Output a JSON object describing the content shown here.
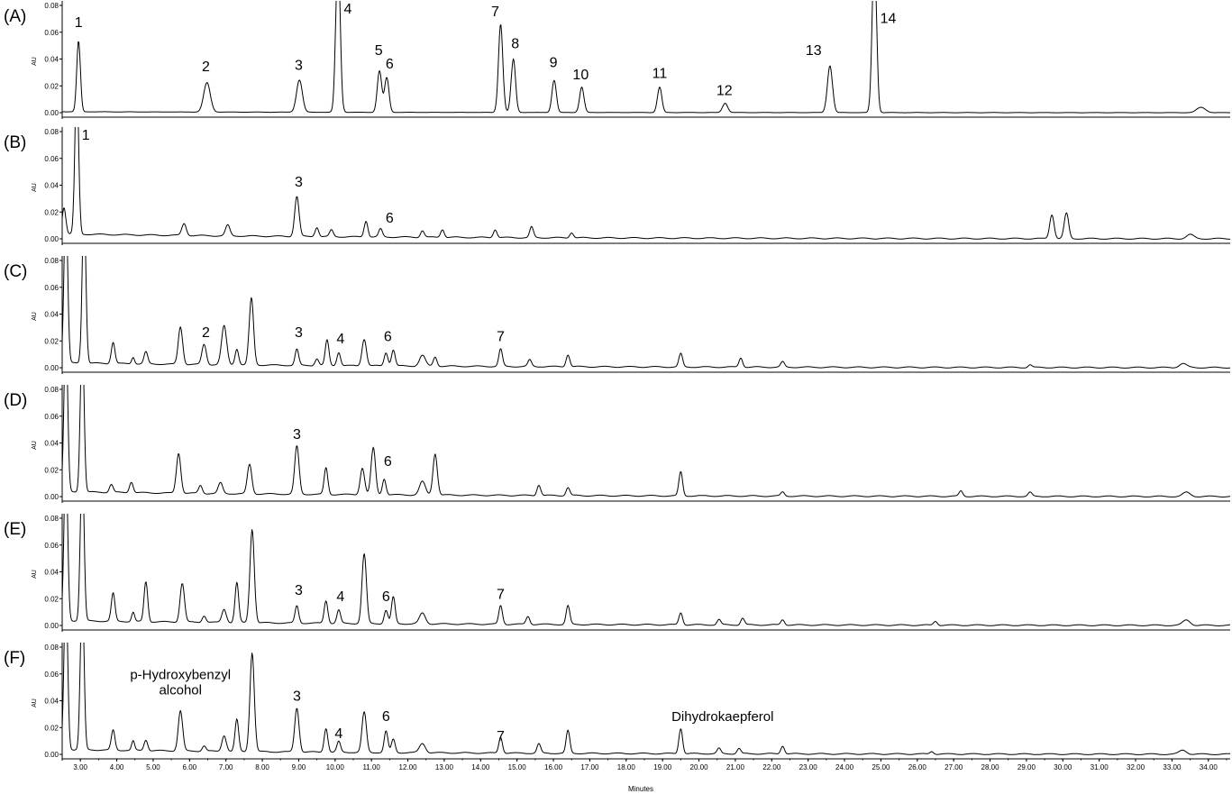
{
  "chart_data": {
    "type": "line",
    "xlabel": "Minutes",
    "ylabel": "AU",
    "xlim": [
      2.5,
      34.6
    ],
    "ylim": [
      -0.002,
      0.08
    ],
    "x_ticks": [
      "3.00",
      "4.00",
      "5.00",
      "6.00",
      "7.00",
      "8.00",
      "9.00",
      "10.00",
      "11.00",
      "12.00",
      "13.00",
      "14.00",
      "15.00",
      "16.00",
      "17.00",
      "18.00",
      "19.00",
      "20.00",
      "21.00",
      "22.00",
      "23.00",
      "24.00",
      "25.00",
      "26.00",
      "27.00",
      "28.00",
      "29.00",
      "30.00",
      "31.00",
      "32.00",
      "33.00",
      "34.00"
    ],
    "y_ticks": [
      "0.00",
      "0.02",
      "0.04",
      "0.06",
      "0.08"
    ],
    "panels": [
      {
        "name": "(A)",
        "peaks": [
          {
            "rt": 2.95,
            "h": 0.053,
            "w": 0.05
          },
          {
            "rt": 6.48,
            "h": 0.022,
            "w": 0.09
          },
          {
            "rt": 9.02,
            "h": 0.024,
            "w": 0.08
          },
          {
            "rt": 10.08,
            "h": 0.12,
            "w": 0.06
          },
          {
            "rt": 11.22,
            "h": 0.031,
            "w": 0.06
          },
          {
            "rt": 11.42,
            "h": 0.026,
            "w": 0.06
          },
          {
            "rt": 14.55,
            "h": 0.066,
            "w": 0.06
          },
          {
            "rt": 14.9,
            "h": 0.04,
            "w": 0.06
          },
          {
            "rt": 16.02,
            "h": 0.024,
            "w": 0.06
          },
          {
            "rt": 16.78,
            "h": 0.019,
            "w": 0.06
          },
          {
            "rt": 18.92,
            "h": 0.019,
            "w": 0.06
          },
          {
            "rt": 20.72,
            "h": 0.007,
            "w": 0.07
          },
          {
            "rt": 23.6,
            "h": 0.035,
            "w": 0.07
          },
          {
            "rt": 24.82,
            "h": 0.12,
            "w": 0.06
          },
          {
            "rt": 33.8,
            "h": 0.004,
            "w": 0.12
          }
        ],
        "labels": [
          {
            "text": "1",
            "rt": 2.95,
            "y": 0.064
          },
          {
            "text": "2",
            "rt": 6.45,
            "y": 0.031
          },
          {
            "text": "3",
            "rt": 9.0,
            "y": 0.032
          },
          {
            "text": "4",
            "rt": 10.35,
            "y": 0.074
          },
          {
            "text": "5",
            "rt": 11.2,
            "y": 0.043
          },
          {
            "text": "6",
            "rt": 11.5,
            "y": 0.033
          },
          {
            "text": "7",
            "rt": 14.4,
            "y": 0.072
          },
          {
            "text": "8",
            "rt": 14.95,
            "y": 0.048
          },
          {
            "text": "9",
            "rt": 16.0,
            "y": 0.034
          },
          {
            "text": "10",
            "rt": 16.75,
            "y": 0.025
          },
          {
            "text": "11",
            "rt": 18.92,
            "y": 0.026
          },
          {
            "text": "12",
            "rt": 20.7,
            "y": 0.013
          },
          {
            "text": "13",
            "rt": 23.15,
            "y": 0.043
          },
          {
            "text": "14",
            "rt": 25.2,
            "y": 0.067
          }
        ]
      },
      {
        "name": "(B)",
        "peaks": [
          {
            "rt": 2.55,
            "h": 0.02,
            "w": 0.05
          },
          {
            "rt": 2.9,
            "h": 0.12,
            "w": 0.05
          },
          {
            "rt": 5.85,
            "h": 0.009,
            "w": 0.06
          },
          {
            "rt": 7.05,
            "h": 0.008,
            "w": 0.06
          },
          {
            "rt": 8.95,
            "h": 0.03,
            "w": 0.06
          },
          {
            "rt": 9.5,
            "h": 0.007,
            "w": 0.05
          },
          {
            "rt": 9.9,
            "h": 0.005,
            "w": 0.05
          },
          {
            "rt": 10.85,
            "h": 0.012,
            "w": 0.05
          },
          {
            "rt": 11.25,
            "h": 0.006,
            "w": 0.05
          },
          {
            "rt": 12.4,
            "h": 0.005,
            "w": 0.05
          },
          {
            "rt": 12.95,
            "h": 0.006,
            "w": 0.05
          },
          {
            "rt": 14.4,
            "h": 0.006,
            "w": 0.05
          },
          {
            "rt": 15.4,
            "h": 0.008,
            "w": 0.05
          },
          {
            "rt": 16.5,
            "h": 0.004,
            "w": 0.05
          },
          {
            "rt": 29.7,
            "h": 0.018,
            "w": 0.06
          },
          {
            "rt": 30.1,
            "h": 0.019,
            "w": 0.06
          },
          {
            "rt": 33.5,
            "h": 0.003,
            "w": 0.1
          }
        ],
        "labels": [
          {
            "text": "1",
            "rt": 3.15,
            "y": 0.074
          },
          {
            "text": "3",
            "rt": 9.0,
            "y": 0.039
          },
          {
            "text": "6",
            "rt": 11.5,
            "y": 0.012
          }
        ]
      },
      {
        "name": "(C)",
        "peaks": [
          {
            "rt": 2.6,
            "h": 0.12,
            "w": 0.05
          },
          {
            "rt": 3.1,
            "h": 0.12,
            "w": 0.05
          },
          {
            "rt": 3.9,
            "h": 0.016,
            "w": 0.05
          },
          {
            "rt": 4.45,
            "h": 0.005,
            "w": 0.04
          },
          {
            "rt": 4.8,
            "h": 0.009,
            "w": 0.05
          },
          {
            "rt": 5.75,
            "h": 0.028,
            "w": 0.06
          },
          {
            "rt": 6.4,
            "h": 0.015,
            "w": 0.06
          },
          {
            "rt": 6.95,
            "h": 0.029,
            "w": 0.07
          },
          {
            "rt": 7.3,
            "h": 0.012,
            "w": 0.05
          },
          {
            "rt": 7.7,
            "h": 0.05,
            "w": 0.06
          },
          {
            "rt": 8.95,
            "h": 0.012,
            "w": 0.05
          },
          {
            "rt": 9.5,
            "h": 0.005,
            "w": 0.05
          },
          {
            "rt": 9.78,
            "h": 0.019,
            "w": 0.05
          },
          {
            "rt": 10.1,
            "h": 0.01,
            "w": 0.05
          },
          {
            "rt": 10.8,
            "h": 0.02,
            "w": 0.06
          },
          {
            "rt": 11.4,
            "h": 0.01,
            "w": 0.05
          },
          {
            "rt": 11.6,
            "h": 0.012,
            "w": 0.05
          },
          {
            "rt": 12.4,
            "h": 0.008,
            "w": 0.08
          },
          {
            "rt": 12.75,
            "h": 0.007,
            "w": 0.05
          },
          {
            "rt": 14.55,
            "h": 0.013,
            "w": 0.05
          },
          {
            "rt": 15.35,
            "h": 0.005,
            "w": 0.05
          },
          {
            "rt": 16.4,
            "h": 0.009,
            "w": 0.05
          },
          {
            "rt": 19.5,
            "h": 0.01,
            "w": 0.05
          },
          {
            "rt": 21.15,
            "h": 0.007,
            "w": 0.05
          },
          {
            "rt": 22.3,
            "h": 0.004,
            "w": 0.05
          },
          {
            "rt": 29.1,
            "h": 0.002,
            "w": 0.05
          },
          {
            "rt": 33.3,
            "h": 0.003,
            "w": 0.1
          }
        ],
        "labels": [
          {
            "text": "2",
            "rt": 6.45,
            "y": 0.023
          },
          {
            "text": "3",
            "rt": 9.0,
            "y": 0.023
          },
          {
            "text": "4",
            "rt": 10.15,
            "y": 0.018
          },
          {
            "text": "6",
            "rt": 11.45,
            "y": 0.02
          },
          {
            "text": "7",
            "rt": 14.55,
            "y": 0.02
          }
        ]
      },
      {
        "name": "(D)",
        "peaks": [
          {
            "rt": 2.6,
            "h": 0.12,
            "w": 0.05
          },
          {
            "rt": 3.05,
            "h": 0.12,
            "w": 0.05
          },
          {
            "rt": 3.85,
            "h": 0.006,
            "w": 0.05
          },
          {
            "rt": 4.4,
            "h": 0.008,
            "w": 0.05
          },
          {
            "rt": 5.7,
            "h": 0.03,
            "w": 0.06
          },
          {
            "rt": 6.3,
            "h": 0.006,
            "w": 0.05
          },
          {
            "rt": 6.85,
            "h": 0.008,
            "w": 0.06
          },
          {
            "rt": 7.65,
            "h": 0.022,
            "w": 0.06
          },
          {
            "rt": 8.95,
            "h": 0.036,
            "w": 0.06
          },
          {
            "rt": 9.75,
            "h": 0.02,
            "w": 0.05
          },
          {
            "rt": 10.75,
            "h": 0.02,
            "w": 0.06
          },
          {
            "rt": 11.05,
            "h": 0.035,
            "w": 0.06
          },
          {
            "rt": 11.35,
            "h": 0.012,
            "w": 0.05
          },
          {
            "rt": 12.4,
            "h": 0.01,
            "w": 0.08
          },
          {
            "rt": 12.75,
            "h": 0.031,
            "w": 0.06
          },
          {
            "rt": 15.6,
            "h": 0.008,
            "w": 0.05
          },
          {
            "rt": 16.4,
            "h": 0.006,
            "w": 0.05
          },
          {
            "rt": 19.5,
            "h": 0.018,
            "w": 0.05
          },
          {
            "rt": 22.3,
            "h": 0.003,
            "w": 0.05
          },
          {
            "rt": 27.2,
            "h": 0.004,
            "w": 0.05
          },
          {
            "rt": 29.1,
            "h": 0.003,
            "w": 0.05
          },
          {
            "rt": 33.4,
            "h": 0.003,
            "w": 0.1
          }
        ],
        "labels": [
          {
            "text": "3",
            "rt": 8.95,
            "y": 0.043
          },
          {
            "text": "6",
            "rt": 11.45,
            "y": 0.023
          }
        ]
      },
      {
        "name": "(E)",
        "peaks": [
          {
            "rt": 2.6,
            "h": 0.12,
            "w": 0.05
          },
          {
            "rt": 3.05,
            "h": 0.12,
            "w": 0.05
          },
          {
            "rt": 3.9,
            "h": 0.021,
            "w": 0.05
          },
          {
            "rt": 4.45,
            "h": 0.007,
            "w": 0.04
          },
          {
            "rt": 4.8,
            "h": 0.03,
            "w": 0.05
          },
          {
            "rt": 5.8,
            "h": 0.029,
            "w": 0.06
          },
          {
            "rt": 6.4,
            "h": 0.005,
            "w": 0.05
          },
          {
            "rt": 6.95,
            "h": 0.01,
            "w": 0.06
          },
          {
            "rt": 7.3,
            "h": 0.03,
            "w": 0.05
          },
          {
            "rt": 7.72,
            "h": 0.07,
            "w": 0.06
          },
          {
            "rt": 8.95,
            "h": 0.013,
            "w": 0.05
          },
          {
            "rt": 9.75,
            "h": 0.017,
            "w": 0.05
          },
          {
            "rt": 10.1,
            "h": 0.01,
            "w": 0.05
          },
          {
            "rt": 10.8,
            "h": 0.052,
            "w": 0.06
          },
          {
            "rt": 11.4,
            "h": 0.01,
            "w": 0.05
          },
          {
            "rt": 11.6,
            "h": 0.02,
            "w": 0.05
          },
          {
            "rt": 12.4,
            "h": 0.008,
            "w": 0.08
          },
          {
            "rt": 14.55,
            "h": 0.014,
            "w": 0.05
          },
          {
            "rt": 15.3,
            "h": 0.006,
            "w": 0.05
          },
          {
            "rt": 16.4,
            "h": 0.014,
            "w": 0.05
          },
          {
            "rt": 19.5,
            "h": 0.009,
            "w": 0.05
          },
          {
            "rt": 20.55,
            "h": 0.004,
            "w": 0.05
          },
          {
            "rt": 21.2,
            "h": 0.005,
            "w": 0.05
          },
          {
            "rt": 22.3,
            "h": 0.004,
            "w": 0.05
          },
          {
            "rt": 26.5,
            "h": 0.003,
            "w": 0.05
          },
          {
            "rt": 33.4,
            "h": 0.004,
            "w": 0.1
          }
        ],
        "labels": [
          {
            "text": "3",
            "rt": 9.0,
            "y": 0.023
          },
          {
            "text": "4",
            "rt": 10.15,
            "y": 0.018
          },
          {
            "text": "6",
            "rt": 11.4,
            "y": 0.018
          },
          {
            "text": "7",
            "rt": 14.55,
            "y": 0.02
          }
        ]
      },
      {
        "name": "(F)",
        "peaks": [
          {
            "rt": 2.6,
            "h": 0.12,
            "w": 0.05
          },
          {
            "rt": 3.05,
            "h": 0.12,
            "w": 0.05
          },
          {
            "rt": 3.9,
            "h": 0.015,
            "w": 0.05
          },
          {
            "rt": 4.45,
            "h": 0.007,
            "w": 0.04
          },
          {
            "rt": 4.8,
            "h": 0.008,
            "w": 0.05
          },
          {
            "rt": 5.75,
            "h": 0.03,
            "w": 0.06
          },
          {
            "rt": 6.4,
            "h": 0.004,
            "w": 0.05
          },
          {
            "rt": 6.95,
            "h": 0.012,
            "w": 0.06
          },
          {
            "rt": 7.3,
            "h": 0.024,
            "w": 0.05
          },
          {
            "rt": 7.72,
            "h": 0.074,
            "w": 0.06
          },
          {
            "rt": 8.95,
            "h": 0.033,
            "w": 0.06
          },
          {
            "rt": 9.75,
            "h": 0.018,
            "w": 0.05
          },
          {
            "rt": 10.1,
            "h": 0.008,
            "w": 0.05
          },
          {
            "rt": 10.8,
            "h": 0.03,
            "w": 0.06
          },
          {
            "rt": 11.4,
            "h": 0.016,
            "w": 0.05
          },
          {
            "rt": 11.6,
            "h": 0.01,
            "w": 0.05
          },
          {
            "rt": 12.4,
            "h": 0.007,
            "w": 0.08
          },
          {
            "rt": 14.55,
            "h": 0.012,
            "w": 0.05
          },
          {
            "rt": 15.6,
            "h": 0.007,
            "w": 0.05
          },
          {
            "rt": 16.4,
            "h": 0.017,
            "w": 0.05
          },
          {
            "rt": 19.5,
            "h": 0.019,
            "w": 0.05
          },
          {
            "rt": 20.55,
            "h": 0.004,
            "w": 0.05
          },
          {
            "rt": 21.1,
            "h": 0.004,
            "w": 0.05
          },
          {
            "rt": 22.3,
            "h": 0.006,
            "w": 0.05
          },
          {
            "rt": 26.4,
            "h": 0.002,
            "w": 0.05
          },
          {
            "rt": 33.3,
            "h": 0.003,
            "w": 0.1
          }
        ],
        "labels": [
          {
            "text": "3",
            "rt": 8.95,
            "y": 0.04
          },
          {
            "text": "4",
            "rt": 10.1,
            "y": 0.012
          },
          {
            "text": "6",
            "rt": 11.4,
            "y": 0.025
          },
          {
            "text": "7",
            "rt": 14.55,
            "y": 0.01
          }
        ],
        "annotations": [
          {
            "lines": [
              "p-Hydroxybenzyl",
              "alcohol"
            ],
            "rt": 5.75,
            "y": 0.056
          },
          {
            "lines": [
              "Dihydrokaepferol"
            ],
            "rt": 20.65,
            "y": 0.025
          }
        ]
      }
    ]
  }
}
